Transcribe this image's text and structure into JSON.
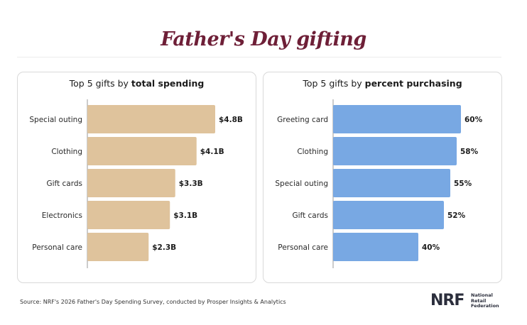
{
  "title": "Father's Day gifting",
  "source": "Source: NRF's 2026 Father's Day Spending Survey, conducted by Prosper Insights & Analytics",
  "logo": {
    "mark": "NRF",
    "line1": "National",
    "line2": "Retail",
    "line3": "Federation"
  },
  "panels": {
    "left": {
      "title_prefix": "Top 5 gifts by ",
      "title_bold": "total spending"
    },
    "right": {
      "title_prefix": "Top 5 gifts by ",
      "title_bold": "percent purchasing"
    }
  },
  "colors": {
    "title": "#6e1f37",
    "spending_bar": "#dfc39c",
    "percent_bar": "#78a8e3",
    "axis": "#9a9a9a"
  },
  "chart_data": [
    {
      "type": "bar",
      "orientation": "horizontal",
      "title": "Top 5 gifts by total spending",
      "categories": [
        "Special outing",
        "Clothing",
        "Gift cards",
        "Electronics",
        "Personal care"
      ],
      "values": [
        4.8,
        4.1,
        3.3,
        3.1,
        2.3
      ],
      "value_labels": [
        "$4.8B",
        "$4.1B",
        "$3.3B",
        "$3.1B",
        "$2.3B"
      ],
      "unit": "billion USD",
      "xlim": [
        0,
        4.8
      ],
      "grid": false,
      "legend": "none",
      "color": "#dfc39c"
    },
    {
      "type": "bar",
      "orientation": "horizontal",
      "title": "Top 5 gifts by percent purchasing",
      "categories": [
        "Greeting card",
        "Clothing",
        "Special outing",
        "Gift cards",
        "Personal care"
      ],
      "values": [
        60,
        58,
        55,
        52,
        40
      ],
      "value_labels": [
        "60%",
        "58%",
        "55%",
        "52%",
        "40%"
      ],
      "unit": "percent",
      "xlim": [
        0,
        60
      ],
      "grid": false,
      "legend": "none",
      "color": "#78a8e3"
    }
  ]
}
